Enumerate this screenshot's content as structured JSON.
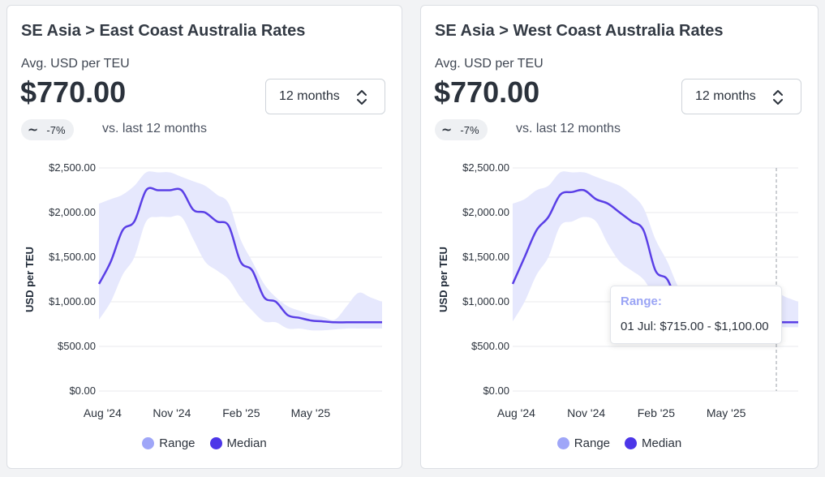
{
  "colors": {
    "range": "#e6e8fd",
    "median": "#5a3fe6",
    "range_legend": "#9fa6f8",
    "median_legend": "#4c36e8"
  },
  "cards": [
    {
      "title": "SE Asia > East Coast Australia Rates",
      "subtitle": "Avg. USD per TEU",
      "price": "$770.00",
      "period": "12 months",
      "change": "-7%",
      "change_icon": "tilde-icon",
      "comparison": "vs. last 12 months"
    },
    {
      "title": "SE Asia > West Coast Australia Rates",
      "subtitle": "Avg. USD per TEU",
      "price": "$770.00",
      "period": "12 months",
      "change": "-7%",
      "change_icon": "tilde-icon",
      "comparison": "vs. last 12 months",
      "tooltip": {
        "title": "Range:",
        "body": "01 Jul: $715.00 - $1,100.00"
      }
    }
  ],
  "chart_data": [
    {
      "type": "area",
      "title": "SE Asia > East Coast Australia Rates",
      "xlabel": "",
      "ylabel": "USD per TEU",
      "ylim": [
        0,
        2500
      ],
      "yticks": [
        "$0.00",
        "$500.00",
        "$1,000.00",
        "$1,500.00",
        "$2,000.00",
        "$2,500.00"
      ],
      "xticks": [
        "Aug '24",
        "Nov '24",
        "Feb '25",
        "May '25"
      ],
      "x": [
        0,
        0.5,
        1,
        1.5,
        2,
        2.5,
        3,
        3.5,
        4,
        4.5,
        5,
        5.5,
        6,
        6.5,
        7,
        7.5,
        8,
        8.5,
        9,
        9.5,
        10,
        10.5,
        11,
        11.5,
        12
      ],
      "series": [
        {
          "name": "Median",
          "values": [
            1200,
            1450,
            1800,
            1900,
            2250,
            2250,
            2250,
            2250,
            2030,
            2000,
            1900,
            1850,
            1450,
            1350,
            1050,
            1000,
            850,
            820,
            790,
            780,
            770,
            770,
            770,
            770,
            770
          ]
        },
        {
          "name": "Range",
          "low": [
            800,
            1000,
            1300,
            1500,
            1900,
            1950,
            1950,
            1950,
            1700,
            1450,
            1350,
            1250,
            1050,
            900,
            780,
            770,
            700,
            700,
            680,
            680,
            690,
            700,
            700,
            700,
            700
          ],
          "high": [
            2100,
            2150,
            2200,
            2300,
            2450,
            2450,
            2450,
            2400,
            2350,
            2300,
            2200,
            2100,
            1700,
            1450,
            1200,
            1050,
            950,
            900,
            860,
            830,
            800,
            950,
            1100,
            1050,
            1000
          ]
        }
      ],
      "legend": [
        "Range",
        "Median"
      ],
      "legend_position": "bottom"
    },
    {
      "type": "area",
      "title": "SE Asia > West Coast Australia Rates",
      "xlabel": "",
      "ylabel": "USD per TEU",
      "ylim": [
        0,
        2500
      ],
      "yticks": [
        "$0.00",
        "$500.00",
        "$1,000.00",
        "$1,500.00",
        "$2,000.00",
        "$2,500.00"
      ],
      "xticks": [
        "Aug '24",
        "Nov '24",
        "Feb '25",
        "May '25"
      ],
      "x": [
        0,
        0.5,
        1,
        1.5,
        2,
        2.5,
        3,
        3.5,
        4,
        4.5,
        5,
        5.5,
        6,
        6.5,
        7,
        7.5,
        8,
        8.5,
        9,
        9.5,
        10,
        10.5,
        11,
        11.5,
        12
      ],
      "series": [
        {
          "name": "Median",
          "values": [
            1200,
            1500,
            1800,
            1950,
            2200,
            2230,
            2250,
            2150,
            2100,
            2000,
            1900,
            1800,
            1350,
            1250,
            950,
            900,
            850,
            800,
            790,
            780,
            770,
            770,
            770,
            770,
            770
          ]
        },
        {
          "name": "Range",
          "low": [
            780,
            1000,
            1300,
            1500,
            1850,
            1900,
            1950,
            1900,
            1650,
            1450,
            1350,
            1250,
            1050,
            950,
            780,
            770,
            700,
            700,
            690,
            690,
            700,
            710,
            715,
            715,
            715
          ],
          "high": [
            2100,
            2150,
            2250,
            2300,
            2450,
            2450,
            2450,
            2400,
            2350,
            2300,
            2200,
            2050,
            1700,
            1450,
            1150,
            1050,
            950,
            900,
            860,
            830,
            800,
            950,
            1100,
            1050,
            1000
          ]
        }
      ],
      "legend": [
        "Range",
        "Median"
      ],
      "legend_position": "bottom",
      "marker_x_label": "01 Jul"
    }
  ],
  "legend_items": [
    {
      "label": "Range",
      "icon": "range-dot-icon"
    },
    {
      "label": "Median",
      "icon": "median-dot-icon"
    }
  ]
}
